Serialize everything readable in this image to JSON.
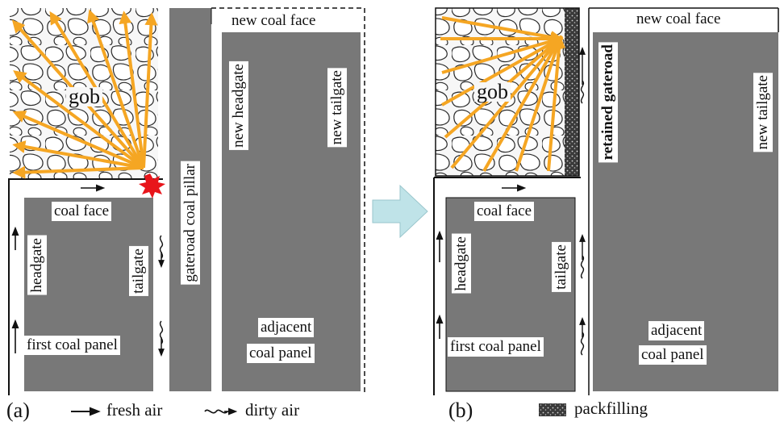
{
  "colors": {
    "panel": "#787878",
    "coal": "#707070",
    "gob_outline": "#222222",
    "flow_arrow": "#f5a623",
    "blast": "#e8151b",
    "transition_arrow": "#bfe3e8",
    "packfill": "#333333"
  },
  "icons": [
    "fresh-air-arrow-icon",
    "dirty-air-arrow-icon",
    "packfilling-swatch-icon",
    "red-star-icon",
    "transition-arrow-icon"
  ],
  "panel_a": {
    "tag": "(a)",
    "gob": "gob",
    "coal_face": "coal face",
    "headgate": "headgate",
    "tailgate": "tailgate",
    "first_panel": "first coal panel",
    "pillar": "gateroad coal pillar",
    "new_coal_face": "new coal face",
    "new_headgate": "new headgate",
    "new_tailgate": "new tailgate",
    "adjacent_1": "adjacent",
    "adjacent_2": "coal panel"
  },
  "panel_b": {
    "tag": "(b)",
    "gob": "gob",
    "coal_face": "coal face",
    "headgate": "headgate",
    "tailgate": "tailgate",
    "first_panel": "first coal panel",
    "retained": "retained gateroad",
    "new_coal_face": "new coal face",
    "new_tailgate": "new tailgate",
    "adjacent_1": "adjacent",
    "adjacent_2": "coal panel"
  },
  "legend": {
    "fresh_air": "fresh air",
    "dirty_air": "dirty air",
    "packfilling": "packfilling"
  }
}
